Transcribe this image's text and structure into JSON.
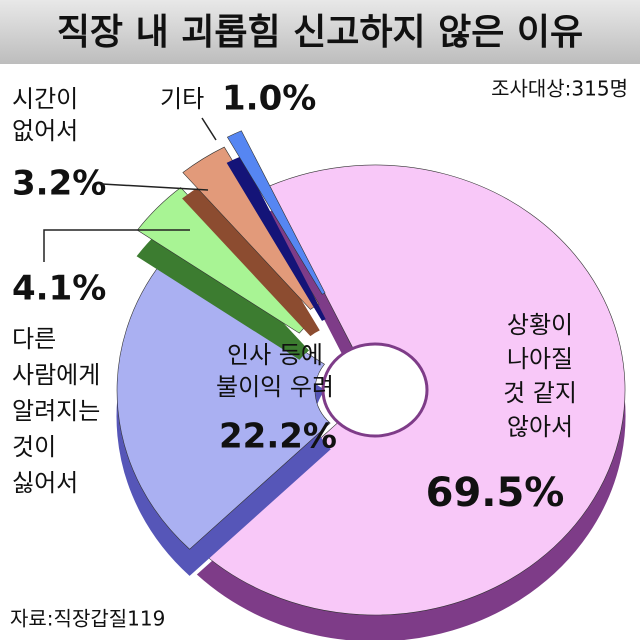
{
  "chart_data": {
    "type": "pie",
    "title": "직장 내 괴롭힘 신고하지 않은 이유",
    "subtitle": "조사대상:315명",
    "source": "자료:직장갑질119",
    "categories": [
      [
        "상황이",
        "나아질",
        "것 같지",
        "않아서"
      ],
      [
        "인사 등에",
        "불이익 우려"
      ],
      [
        "다른",
        "사람에게",
        "알려지는",
        "것이",
        "싫어서"
      ],
      [
        "시간이",
        "없어서"
      ],
      [
        "기타"
      ]
    ],
    "values": [
      69.5,
      22.2,
      4.1,
      3.2,
      1.0
    ],
    "value_labels": [
      "69.5%",
      "22.2%",
      "4.1%",
      "3.2%",
      "1.0%"
    ],
    "colors": [
      "#f8c8f8",
      "#aab0f2",
      "#a8f494",
      "#e29a7a",
      "#5686f2"
    ],
    "side_colors": [
      "#7e3c88",
      "#5656b8",
      "#3c7c30",
      "#8c4c30",
      "#141478"
    ]
  }
}
